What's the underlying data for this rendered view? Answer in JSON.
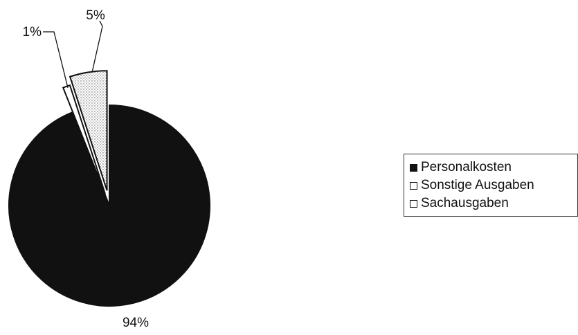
{
  "chart_data": {
    "type": "pie",
    "title": "",
    "slices": [
      {
        "label": "Personalkosten",
        "value": 94,
        "value_label": "94%",
        "fill": "#111111",
        "pattern": "solid"
      },
      {
        "label": "Sonstige Ausgaben",
        "value": 1,
        "value_label": "1%",
        "fill": "#ffffff",
        "pattern": "none"
      },
      {
        "label": "Sachausgaben",
        "value": 5,
        "value_label": "5%",
        "fill": "#ffffff",
        "pattern": "dotted"
      }
    ],
    "exploded": [
      "Sonstige Ausgaben",
      "Sachausgaben"
    ],
    "legend_position": "right"
  }
}
